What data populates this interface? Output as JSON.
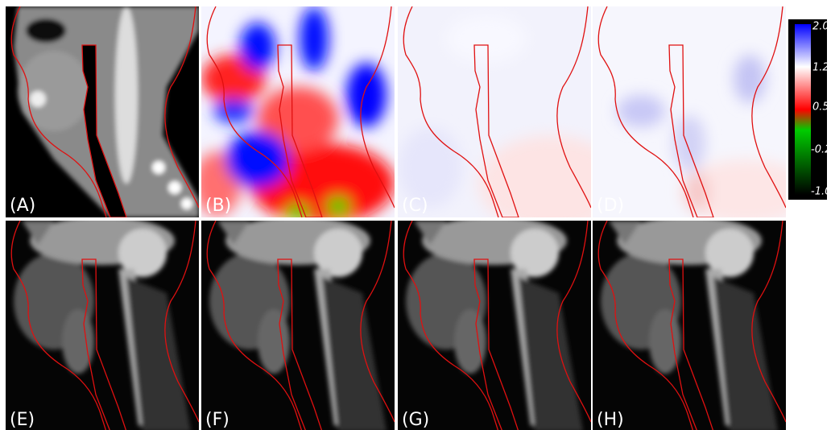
{
  "panels": [
    {
      "label": "(A)"
    },
    {
      "label": "(B)"
    },
    {
      "label": "(C)"
    },
    {
      "label": "(D)"
    },
    {
      "label": "(E)"
    },
    {
      "label": "(F)"
    },
    {
      "label": "(G)"
    },
    {
      "label": "(H)"
    }
  ],
  "colorbar": {
    "labels": [
      "2.0",
      "1.2",
      "0.5",
      "-0.2",
      "-1.0"
    ]
  }
}
